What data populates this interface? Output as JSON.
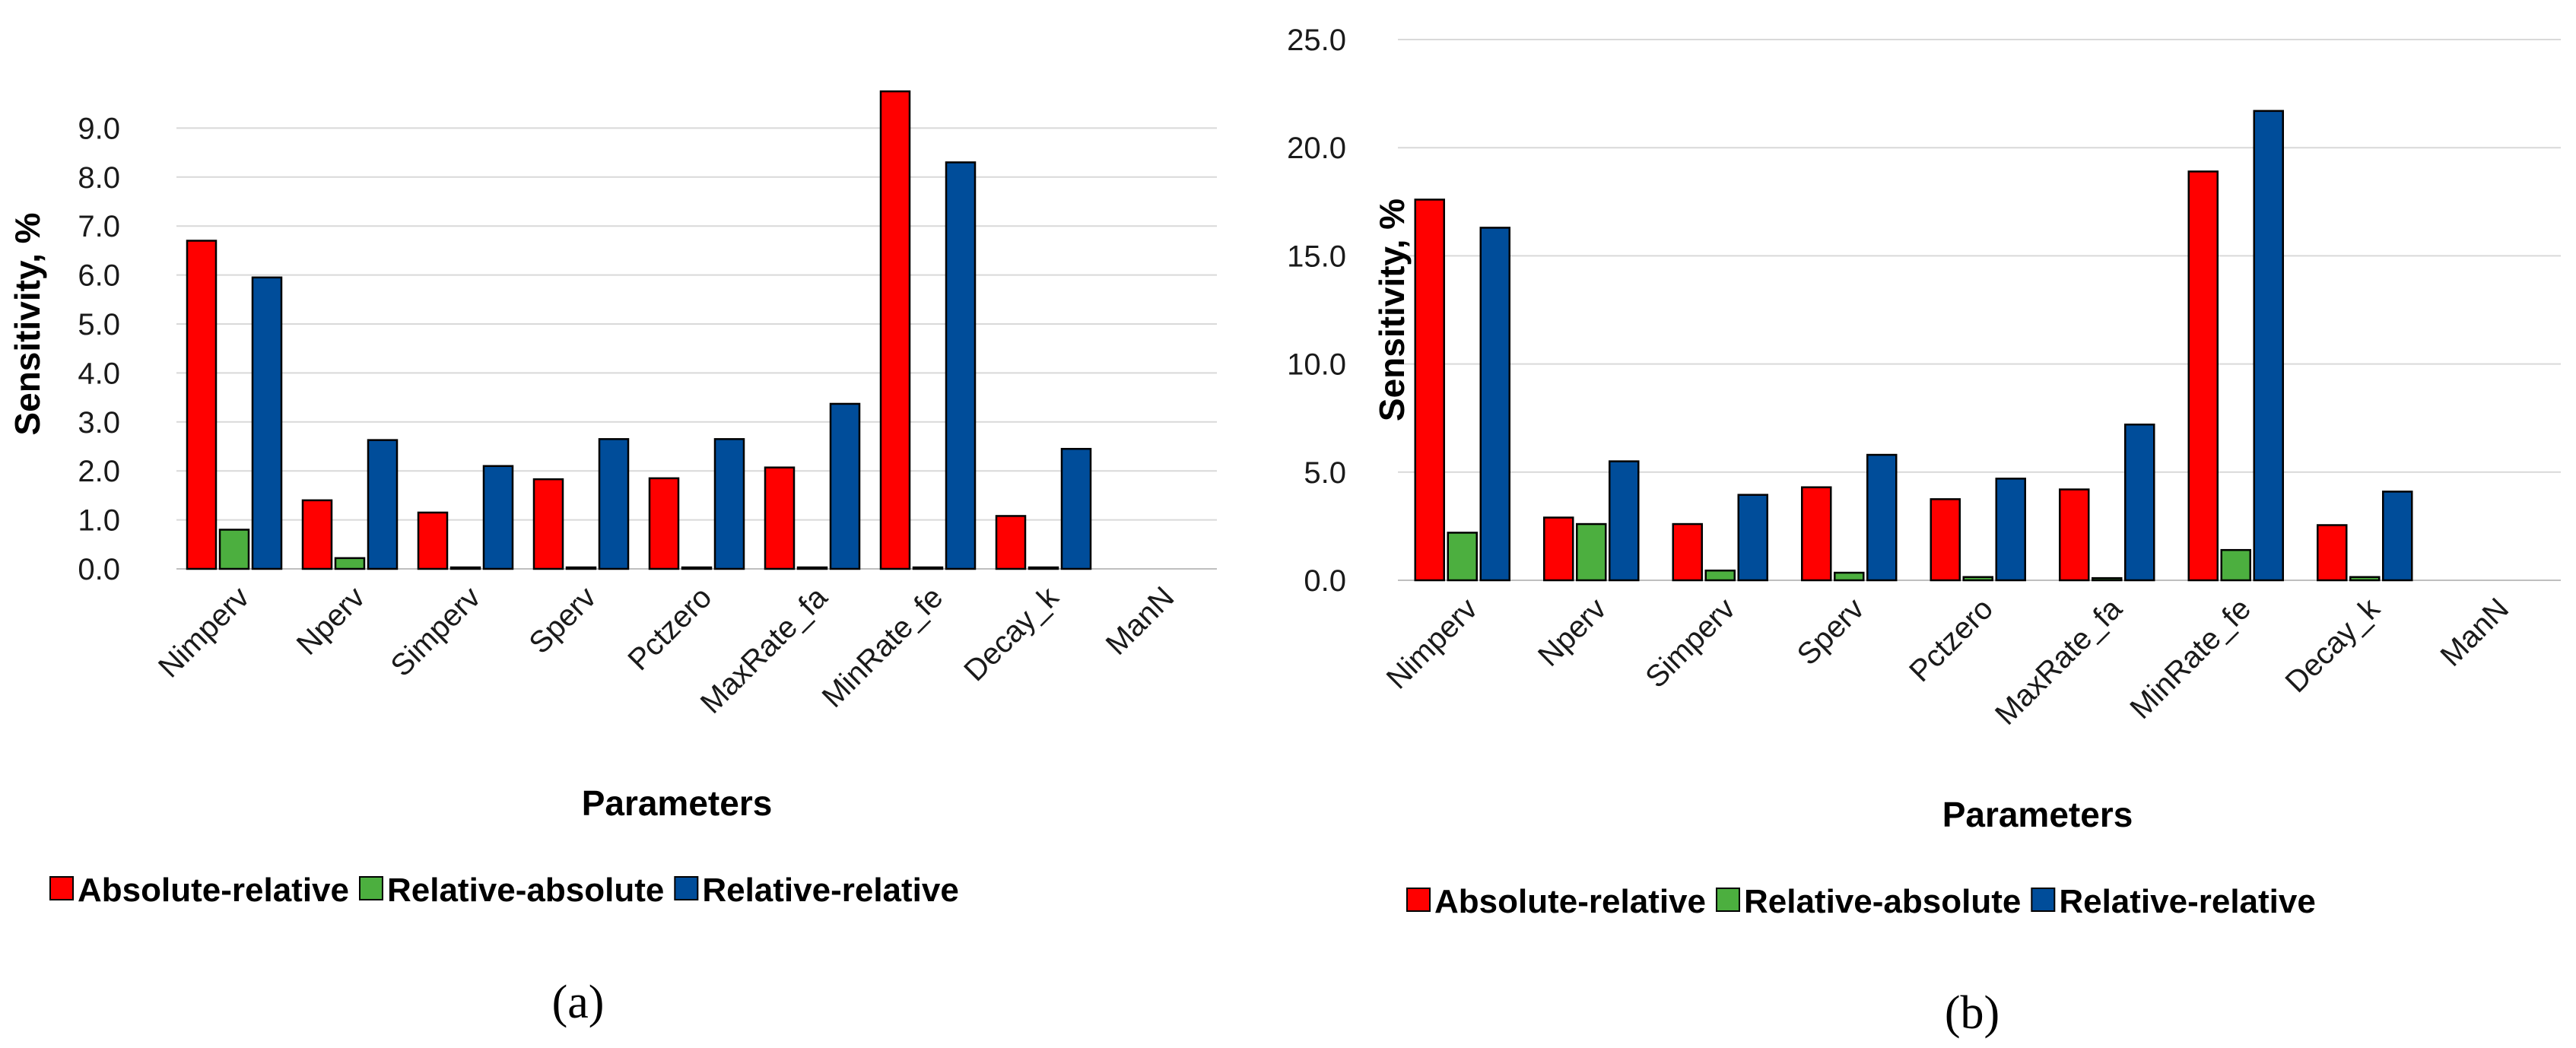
{
  "legend": {
    "colors": [
      "#ff0000",
      "#4caf3f",
      "#004d9a"
    ]
  },
  "chart_data": [
    {
      "type": "bar",
      "panel_label": "(a)",
      "categories": [
        "Nimperv",
        "Nperv",
        "Simperv",
        "Sperv",
        "Pctzero",
        "MaxRate_fa",
        "MinRate_fe",
        "Decay_k",
        "ManN"
      ],
      "series": [
        {
          "name": "Absolute-relative",
          "color": "#ff0000",
          "values": [
            6.7,
            1.4,
            1.15,
            1.83,
            1.85,
            2.07,
            9.75,
            1.08,
            0
          ]
        },
        {
          "name": "Relative-absolute",
          "color": "#4caf3f",
          "values": [
            0.8,
            0.22,
            0.03,
            0.03,
            0.03,
            0.03,
            0.03,
            0.03,
            0
          ]
        },
        {
          "name": "Relative-relative",
          "color": "#004d9a",
          "values": [
            5.95,
            2.63,
            2.1,
            2.65,
            2.65,
            3.37,
            8.3,
            2.45,
            0
          ]
        }
      ],
      "yticks": [
        "0.0",
        "1.0",
        "2.0",
        "3.0",
        "4.0",
        "5.0",
        "6.0",
        "7.0",
        "8.0",
        "9.0"
      ],
      "ylim": [
        0,
        10
      ],
      "ylabel": "Sensitivity, %",
      "xlabel": "Parameters",
      "legend_position": "bottom"
    },
    {
      "type": "bar",
      "panel_label": "(b)",
      "categories": [
        "Nimperv",
        "Nperv",
        "Simperv",
        "Sperv",
        "Pctzero",
        "MaxRate_fa",
        "MinRate_fe",
        "Decay_k",
        "ManN"
      ],
      "series": [
        {
          "name": "Absolute-relative",
          "color": "#ff0000",
          "values": [
            17.6,
            2.9,
            2.6,
            4.3,
            3.75,
            4.2,
            18.9,
            2.55,
            0
          ]
        },
        {
          "name": "Relative-absolute",
          "color": "#4caf3f",
          "values": [
            2.2,
            2.6,
            0.45,
            0.35,
            0.15,
            0.1,
            1.4,
            0.15,
            0
          ]
        },
        {
          "name": "Relative-relative",
          "color": "#004d9a",
          "values": [
            16.3,
            5.5,
            3.95,
            5.8,
            4.7,
            7.2,
            21.7,
            4.1,
            0
          ]
        }
      ],
      "yticks": [
        "0.0",
        "5.0",
        "10.0",
        "15.0",
        "20.0",
        "25.0"
      ],
      "ylim": [
        0,
        25
      ],
      "ylabel": "Sensitivity, %",
      "xlabel": "Parameters",
      "legend_position": "bottom"
    }
  ]
}
